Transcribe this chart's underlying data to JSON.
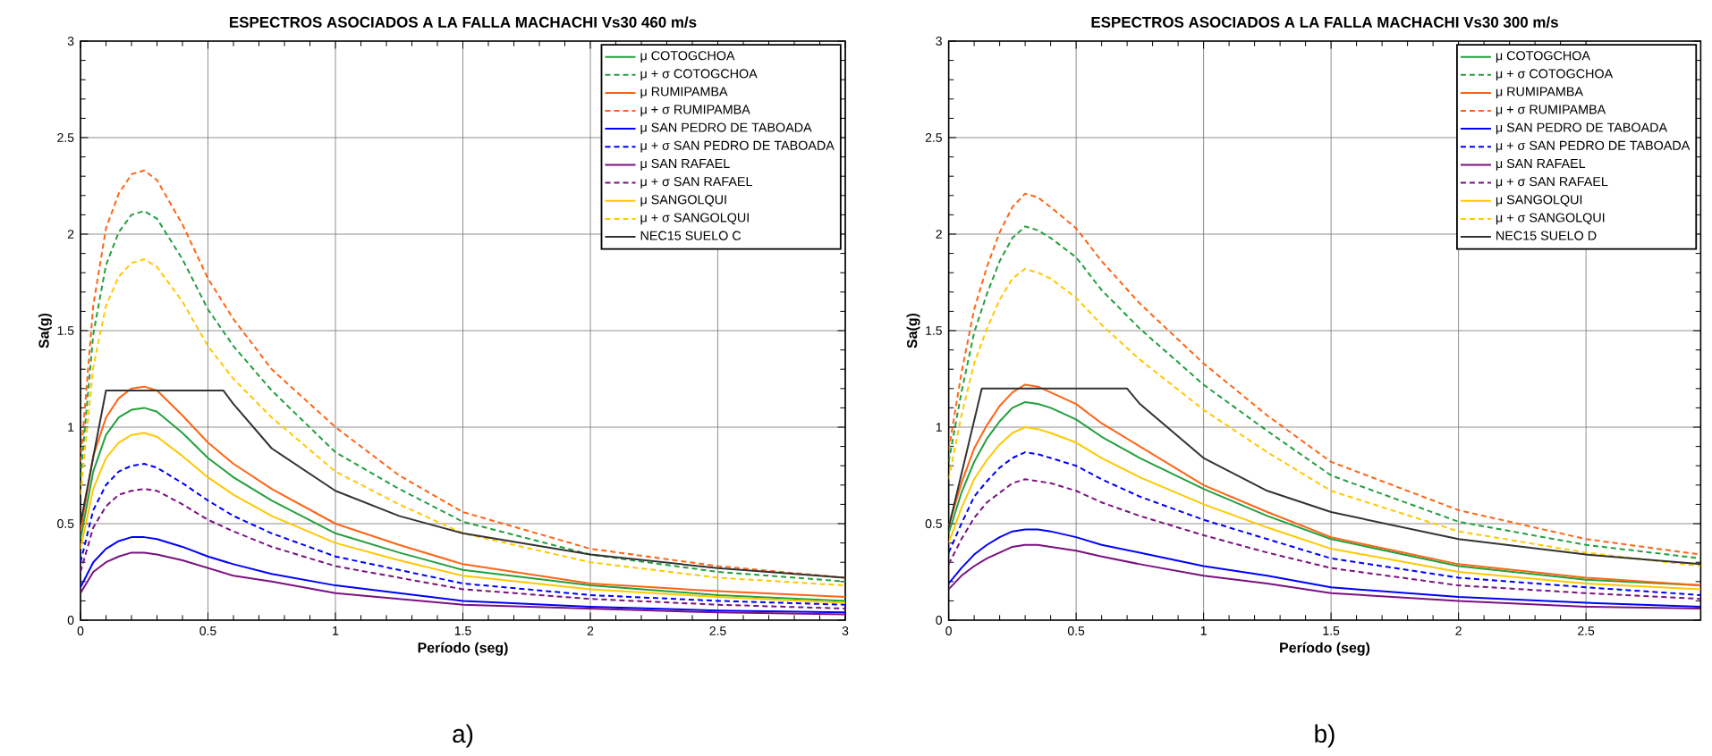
{
  "chart_data": [
    {
      "type": "line",
      "title": "ESPECTROS ASOCIADOS A LA FALLA MACHACHI Vs30 460 m/s",
      "xlabel": "Período (seg)",
      "ylabel": "Sa(g)",
      "annotations": [
        "a)"
      ],
      "grid": true,
      "legend": "top right",
      "xlim": [
        0,
        3
      ],
      "ylim": [
        0,
        3
      ],
      "xticks": [
        0,
        0.5,
        1,
        1.5,
        2,
        2.5,
        3
      ],
      "yticks": [
        0,
        0.5,
        1,
        1.5,
        2,
        2.5,
        3
      ],
      "x": [
        0,
        0.05,
        0.1,
        0.15,
        0.2,
        0.25,
        0.3,
        0.4,
        0.5,
        0.6,
        0.75,
        1,
        1.25,
        1.5,
        2,
        2.5,
        3
      ],
      "series": [
        {
          "name": "μ COTOGCHOA",
          "color": "#22a03c",
          "line_style": "solid",
          "values": [
            0.42,
            0.77,
            0.96,
            1.05,
            1.09,
            1.1,
            1.08,
            0.97,
            0.84,
            0.74,
            0.62,
            0.45,
            0.35,
            0.26,
            0.18,
            0.13,
            0.1
          ]
        },
        {
          "name": "μ + σ COTOGCHOA",
          "color": "#22a03c",
          "line_style": "dashed",
          "values": [
            0.74,
            1.48,
            1.84,
            2.01,
            2.1,
            2.12,
            2.08,
            1.87,
            1.61,
            1.42,
            1.19,
            0.87,
            0.68,
            0.51,
            0.34,
            0.25,
            0.2
          ]
        },
        {
          "name": "μ RUMIPAMBA",
          "color": "#ff6414",
          "line_style": "solid",
          "values": [
            0.46,
            0.85,
            1.05,
            1.15,
            1.2,
            1.21,
            1.19,
            1.06,
            0.92,
            0.81,
            0.68,
            0.5,
            0.39,
            0.29,
            0.19,
            0.15,
            0.12
          ]
        },
        {
          "name": "μ + σ RUMIPAMBA",
          "color": "#ff6414",
          "line_style": "dashed",
          "values": [
            0.82,
            1.63,
            2.03,
            2.21,
            2.31,
            2.33,
            2.28,
            2.05,
            1.77,
            1.56,
            1.3,
            1.0,
            0.75,
            0.56,
            0.37,
            0.28,
            0.22
          ]
        },
        {
          "name": "μ SAN PEDRO DE TABOADA",
          "color": "#0000ff",
          "line_style": "solid",
          "values": [
            0.17,
            0.3,
            0.37,
            0.41,
            0.43,
            0.43,
            0.42,
            0.38,
            0.33,
            0.29,
            0.24,
            0.18,
            0.14,
            0.1,
            0.07,
            0.05,
            0.04
          ]
        },
        {
          "name": "μ + σ SAN PEDRO DE TABOADA",
          "color": "#0000ff",
          "line_style": "dashed",
          "values": [
            0.3,
            0.57,
            0.7,
            0.77,
            0.8,
            0.81,
            0.79,
            0.71,
            0.62,
            0.54,
            0.45,
            0.33,
            0.26,
            0.19,
            0.13,
            0.1,
            0.08
          ]
        },
        {
          "name": "μ SAN RAFAEL",
          "color": "#7a1080",
          "line_style": "solid",
          "values": [
            0.14,
            0.25,
            0.3,
            0.33,
            0.35,
            0.35,
            0.34,
            0.31,
            0.27,
            0.23,
            0.2,
            0.14,
            0.11,
            0.08,
            0.06,
            0.04,
            0.03
          ]
        },
        {
          "name": "μ + σ SAN RAFAEL",
          "color": "#7a1080",
          "line_style": "dashed",
          "values": [
            0.25,
            0.48,
            0.59,
            0.65,
            0.67,
            0.68,
            0.67,
            0.6,
            0.52,
            0.46,
            0.38,
            0.28,
            0.22,
            0.16,
            0.11,
            0.08,
            0.06
          ]
        },
        {
          "name": "μ SANGOLQUI",
          "color": "#ffc800",
          "line_style": "solid",
          "values": [
            0.37,
            0.68,
            0.84,
            0.92,
            0.96,
            0.97,
            0.95,
            0.85,
            0.74,
            0.65,
            0.54,
            0.4,
            0.31,
            0.23,
            0.16,
            0.12,
            0.09
          ]
        },
        {
          "name": "μ + σ SANGOLQUI",
          "color": "#ffc800",
          "line_style": "dashed",
          "values": [
            0.65,
            1.31,
            1.63,
            1.78,
            1.85,
            1.87,
            1.83,
            1.65,
            1.42,
            1.25,
            1.05,
            0.77,
            0.6,
            0.45,
            0.3,
            0.22,
            0.18
          ]
        },
        {
          "name": "NEC15 SUELO C",
          "color": "#333333",
          "line_style": "solid",
          "x": [
            0,
            0.1,
            0.56,
            0.6,
            0.75,
            1,
            1.25,
            1.5,
            2,
            2.5,
            3
          ],
          "values": [
            0.5,
            1.19,
            1.19,
            1.12,
            0.89,
            0.67,
            0.54,
            0.45,
            0.34,
            0.27,
            0.22
          ]
        }
      ]
    },
    {
      "type": "line",
      "title": "ESPECTROS ASOCIADOS A LA FALLA MACHACHI Vs30 300 m/s",
      "xlabel": "Período (seg)",
      "ylabel": "Sa(g)",
      "annotations": [
        "b)"
      ],
      "grid": true,
      "legend": "top right",
      "xlim": [
        0,
        2.95
      ],
      "ylim": [
        0,
        3
      ],
      "xticks": [
        0,
        0.5,
        1,
        1.5,
        2,
        2.5
      ],
      "yticks": [
        0,
        0.5,
        1,
        1.5,
        2,
        2.5,
        3
      ],
      "x": [
        0,
        0.05,
        0.1,
        0.15,
        0.2,
        0.25,
        0.3,
        0.35,
        0.4,
        0.5,
        0.6,
        0.75,
        1,
        1.25,
        1.5,
        2,
        2.5,
        2.95
      ],
      "series": [
        {
          "name": "μ COTOGCHOA",
          "color": "#22a03c",
          "line_style": "solid",
          "values": [
            0.45,
            0.66,
            0.82,
            0.94,
            1.03,
            1.1,
            1.13,
            1.12,
            1.1,
            1.04,
            0.95,
            0.84,
            0.68,
            0.54,
            0.42,
            0.28,
            0.21,
            0.18
          ]
        },
        {
          "name": "μ + σ COTOGCHOA",
          "color": "#22a03c",
          "line_style": "dashed",
          "values": [
            0.82,
            1.18,
            1.49,
            1.69,
            1.86,
            1.98,
            2.04,
            2.02,
            1.98,
            1.88,
            1.71,
            1.51,
            1.22,
            0.98,
            0.75,
            0.51,
            0.39,
            0.32
          ]
        },
        {
          "name": "μ RUMIPAMBA",
          "color": "#ff6414",
          "line_style": "solid",
          "values": [
            0.49,
            0.71,
            0.89,
            1.01,
            1.11,
            1.18,
            1.22,
            1.21,
            1.18,
            1.12,
            1.02,
            0.9,
            0.7,
            0.56,
            0.43,
            0.29,
            0.22,
            0.18
          ]
        },
        {
          "name": "μ + σ RUMIPAMBA",
          "color": "#ff6414",
          "line_style": "dashed",
          "values": [
            0.88,
            1.28,
            1.61,
            1.83,
            2.01,
            2.14,
            2.21,
            2.19,
            2.14,
            2.03,
            1.86,
            1.64,
            1.33,
            1.06,
            0.82,
            0.57,
            0.42,
            0.34
          ]
        },
        {
          "name": "μ SAN PEDRO DE TABOADA",
          "color": "#0000ff",
          "line_style": "solid",
          "values": [
            0.19,
            0.27,
            0.34,
            0.39,
            0.43,
            0.46,
            0.47,
            0.47,
            0.46,
            0.43,
            0.39,
            0.35,
            0.28,
            0.23,
            0.17,
            0.12,
            0.09,
            0.07
          ]
        },
        {
          "name": "μ + σ SAN PEDRO DE TABOADA",
          "color": "#0000ff",
          "line_style": "dashed",
          "values": [
            0.35,
            0.5,
            0.64,
            0.72,
            0.79,
            0.84,
            0.87,
            0.86,
            0.84,
            0.8,
            0.73,
            0.64,
            0.52,
            0.42,
            0.32,
            0.22,
            0.17,
            0.13
          ]
        },
        {
          "name": "μ SAN RAFAEL",
          "color": "#7a1080",
          "line_style": "solid",
          "values": [
            0.16,
            0.23,
            0.28,
            0.32,
            0.35,
            0.38,
            0.39,
            0.39,
            0.38,
            0.36,
            0.33,
            0.29,
            0.23,
            0.19,
            0.14,
            0.1,
            0.07,
            0.06
          ]
        },
        {
          "name": "μ + σ SAN RAFAEL",
          "color": "#7a1080",
          "line_style": "dashed",
          "values": [
            0.29,
            0.42,
            0.53,
            0.61,
            0.66,
            0.71,
            0.73,
            0.72,
            0.71,
            0.67,
            0.61,
            0.54,
            0.44,
            0.35,
            0.27,
            0.18,
            0.14,
            0.11
          ]
        },
        {
          "name": "μ SANGOLQUI",
          "color": "#ffc800",
          "line_style": "solid",
          "values": [
            0.4,
            0.58,
            0.73,
            0.83,
            0.91,
            0.97,
            1.0,
            0.99,
            0.97,
            0.92,
            0.84,
            0.74,
            0.6,
            0.48,
            0.37,
            0.25,
            0.19,
            0.16
          ]
        },
        {
          "name": "μ + σ SANGOLQUI",
          "color": "#ffc800",
          "line_style": "dashed",
          "values": [
            0.73,
            1.06,
            1.33,
            1.51,
            1.66,
            1.77,
            1.82,
            1.8,
            1.77,
            1.67,
            1.53,
            1.35,
            1.09,
            0.87,
            0.67,
            0.46,
            0.35,
            0.28
          ]
        },
        {
          "name": "NEC15 SUELO D",
          "color": "#333333",
          "line_style": "solid",
          "x": [
            0,
            0.13,
            0.7,
            0.75,
            1,
            1.25,
            1.5,
            2,
            2.5,
            2.95
          ],
          "values": [
            0.48,
            1.2,
            1.2,
            1.12,
            0.84,
            0.67,
            0.56,
            0.42,
            0.34,
            0.29
          ]
        }
      ]
    }
  ]
}
